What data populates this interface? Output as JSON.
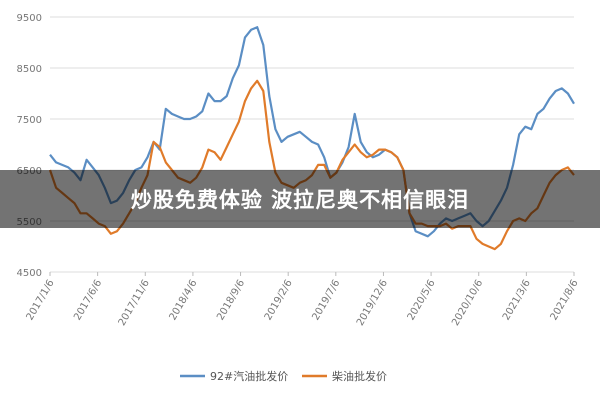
{
  "chart_data": {
    "type": "line",
    "title": "",
    "xlabel": "",
    "ylabel": "",
    "ylim": [
      4500,
      9500
    ],
    "yticks": [
      4500,
      5500,
      6500,
      7500,
      8500,
      9500
    ],
    "xticks": [
      "2017/1/6",
      "2017/6/6",
      "2017/11/6",
      "2018/4/6",
      "2018/9/6",
      "2019/2/6",
      "2019/7/6",
      "2019/12/6",
      "2020/5/6",
      "2020/10/6",
      "2021/3/6",
      "2021/8/6"
    ],
    "grid": true,
    "legend": "bottom",
    "series": [
      {
        "name": "92#汽油批发价",
        "color": "#5b8ec4",
        "values": [
          6800,
          6650,
          6600,
          6550,
          6450,
          6300,
          6700,
          6550,
          6400,
          6150,
          5850,
          5900,
          6050,
          6300,
          6500,
          6550,
          6750,
          7050,
          6900,
          7700,
          7600,
          7550,
          7500,
          7500,
          7550,
          7650,
          8000,
          7850,
          7850,
          7950,
          8300,
          8550,
          9100,
          9250,
          9300,
          8950,
          7950,
          7300,
          7050,
          7150,
          7200,
          7250,
          7150,
          7050,
          7000,
          6750,
          6350,
          6450,
          6650,
          6950,
          7600,
          7050,
          6850,
          6750,
          6800,
          6900,
          6850,
          6750,
          6500,
          5650,
          5300,
          5250,
          5200,
          5300,
          5450,
          5550,
          5500,
          5550,
          5600,
          5650,
          5500,
          5400,
          5500,
          5700,
          5900,
          6150,
          6600,
          7200,
          7350,
          7300,
          7600,
          7700,
          7900,
          8050,
          8100,
          8000,
          7800
        ]
      },
      {
        "name": "柴油批发价",
        "color": "#e07b2a",
        "values": [
          6500,
          6150,
          6050,
          5950,
          5850,
          5650,
          5650,
          5550,
          5450,
          5400,
          5250,
          5300,
          5450,
          5650,
          5850,
          6150,
          6400,
          7050,
          6950,
          6650,
          6500,
          6350,
          6300,
          6250,
          6350,
          6550,
          6900,
          6850,
          6700,
          6950,
          7200,
          7450,
          7850,
          8100,
          8250,
          8050,
          7050,
          6450,
          6250,
          6200,
          6150,
          6250,
          6300,
          6400,
          6600,
          6600,
          6350,
          6450,
          6700,
          6850,
          7000,
          6850,
          6750,
          6800,
          6900,
          6900,
          6850,
          6750,
          6500,
          5650,
          5450,
          5450,
          5400,
          5400,
          5400,
          5450,
          5350,
          5400,
          5400,
          5400,
          5150,
          5050,
          5000,
          4950,
          5050,
          5300,
          5500,
          5550,
          5500,
          5650,
          5750,
          6000,
          6250,
          6400,
          6500,
          6550,
          6400
        ]
      }
    ]
  },
  "overlay": {
    "text": "炒股免费体验 波拉尼奥不相信眼泪"
  }
}
